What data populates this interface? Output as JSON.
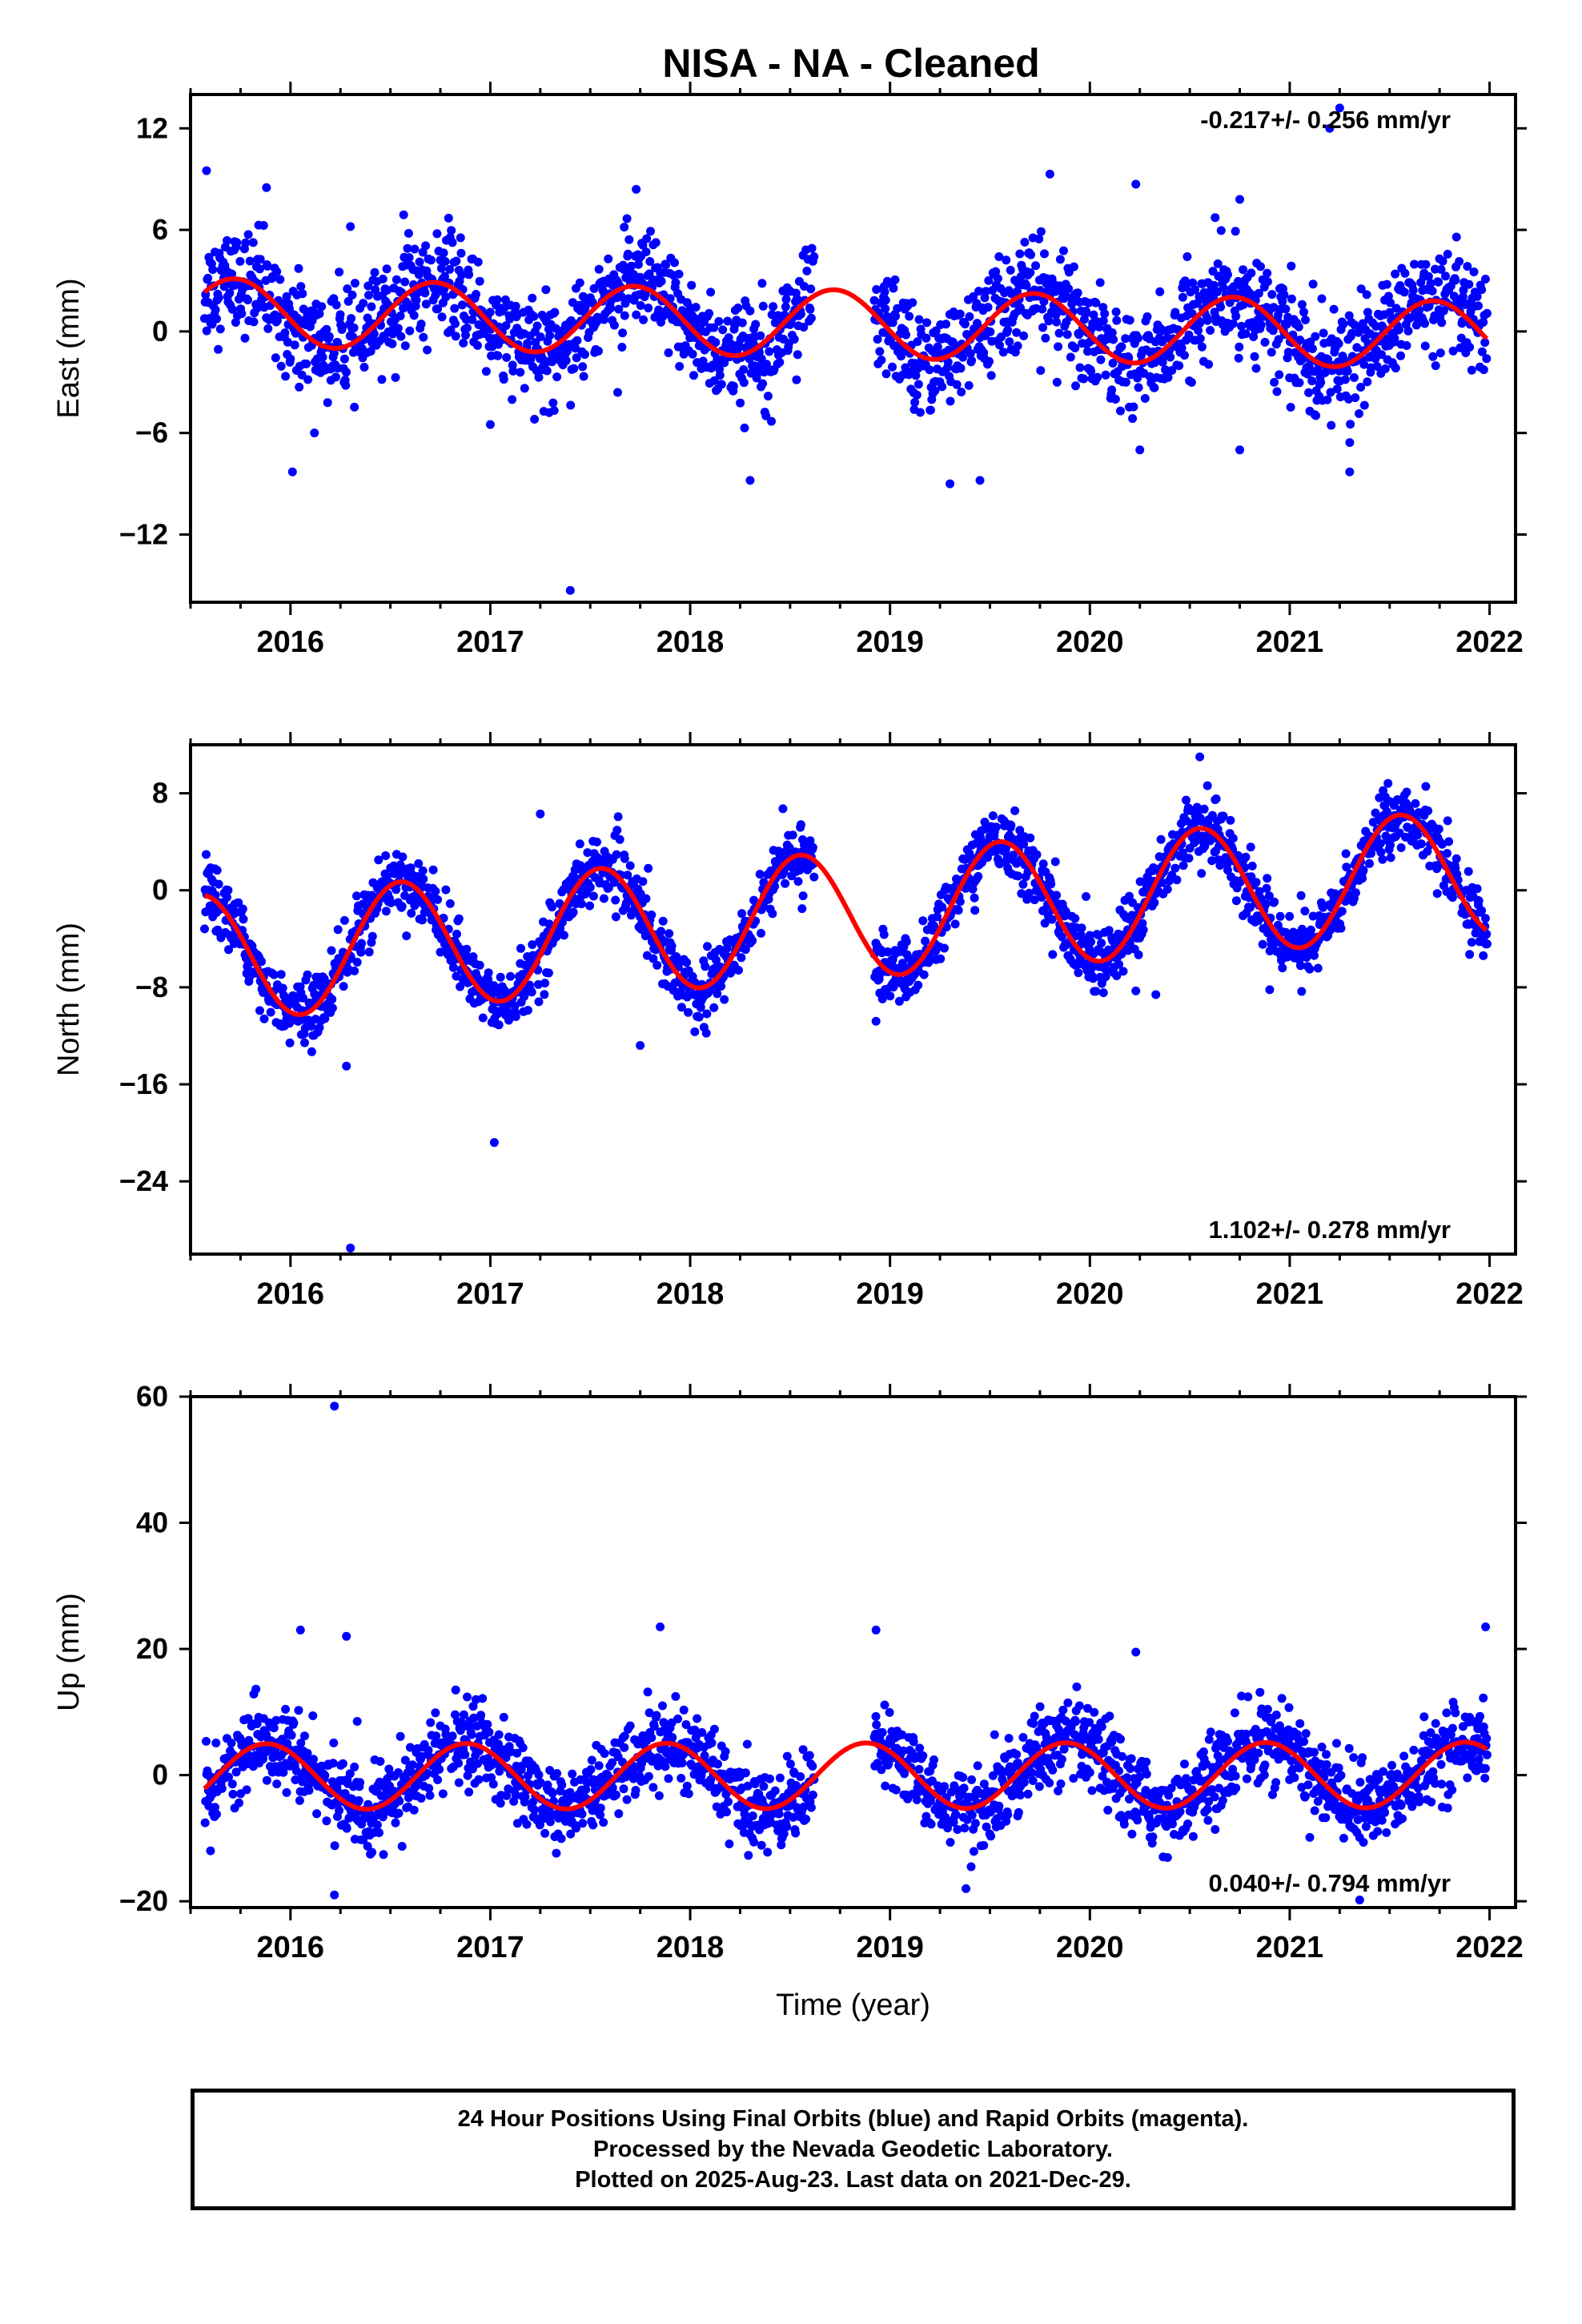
{
  "title": "NISA  - NA - Cleaned",
  "colors": {
    "points": "#0000ff",
    "model": "#ff0000",
    "axes": "#000000"
  },
  "chart_data": [
    {
      "type": "scatter",
      "component": "East",
      "ylabel": "East (mm)",
      "xlabel": "",
      "xlim": [
        2015.5,
        2022.13
      ],
      "ylim": [
        -16,
        14
      ],
      "yticks": [
        12,
        6,
        0,
        -6,
        -12
      ],
      "xticks": [
        2016,
        2017,
        2018,
        2019,
        2020,
        2021,
        2022
      ],
      "rate_label": "-0.217+/- 0.256 mm/yr",
      "rate_position": "top-right",
      "model": {
        "offset": 0.4,
        "rate": -0.217,
        "amplitude": 2.0,
        "peak_phase": 0.72
      },
      "scatter_sd": 1.5,
      "outliers": [
        {
          "x": 2015.58,
          "y": 9.5
        },
        {
          "x": 2015.88,
          "y": 8.5
        },
        {
          "x": 2016.01,
          "y": -8.3
        },
        {
          "x": 2016.12,
          "y": -6.0
        },
        {
          "x": 2016.3,
          "y": 6.2
        },
        {
          "x": 2017.0,
          "y": -5.5
        },
        {
          "x": 2017.4,
          "y": -15.3
        },
        {
          "x": 2017.73,
          "y": 8.4
        },
        {
          "x": 2018.3,
          "y": -8.8
        },
        {
          "x": 2019.3,
          "y": -9.0
        },
        {
          "x": 2019.45,
          "y": -8.8
        },
        {
          "x": 2019.8,
          "y": 9.3
        },
        {
          "x": 2020.23,
          "y": 8.7
        },
        {
          "x": 2020.25,
          "y": -7.0
        },
        {
          "x": 2020.75,
          "y": -7.0
        },
        {
          "x": 2020.75,
          "y": 7.8
        },
        {
          "x": 2021.2,
          "y": 12.0
        },
        {
          "x": 2021.25,
          "y": 13.2
        },
        {
          "x": 2021.3,
          "y": -8.3
        }
      ]
    },
    {
      "type": "scatter",
      "component": "North",
      "ylabel": "North (mm)",
      "xlabel": "",
      "xlim": [
        2015.5,
        2022.13
      ],
      "ylim": [
        -30,
        12
      ],
      "yticks": [
        8,
        0,
        -8,
        -16,
        -24
      ],
      "xticks": [
        2016,
        2017,
        2018,
        2019,
        2020,
        2021,
        2022
      ],
      "rate_label": "1.102+/- 0.278 mm/yr",
      "rate_position": "bottom-right",
      "model": {
        "offset": -1.8,
        "rate": 1.102,
        "amplitude": 5.2,
        "peak_phase": 0.55
      },
      "scatter_sd": 1.3,
      "outliers": [
        {
          "x": 2016.3,
          "y": -29.5
        },
        {
          "x": 2017.02,
          "y": -20.8
        },
        {
          "x": 2016.28,
          "y": -14.5
        },
        {
          "x": 2017.25,
          "y": 6.3
        },
        {
          "x": 2017.75,
          "y": -12.8
        },
        {
          "x": 2018.93,
          "y": -10.8
        },
        {
          "x": 2020.23,
          "y": -8.3
        },
        {
          "x": 2020.33,
          "y": -8.6
        },
        {
          "x": 2020.9,
          "y": -8.2
        },
        {
          "x": 2021.1,
          "y": -6.5
        },
        {
          "x": 2020.55,
          "y": 11.0
        }
      ]
    },
    {
      "type": "scatter",
      "component": "Up",
      "ylabel": "Up (mm)",
      "xlabel": "Time (year)",
      "xlim": [
        2015.5,
        2022.13
      ],
      "ylim": [
        -21,
        60
      ],
      "yticks": [
        60,
        40,
        20,
        0,
        -20
      ],
      "xticks": [
        2016,
        2017,
        2018,
        2019,
        2020,
        2021,
        2022
      ],
      "rate_label": "0.040+/- 0.794 mm/yr",
      "rate_position": "bottom-right",
      "model": {
        "offset": -0.1,
        "rate": 0.04,
        "amplitude": 5.2,
        "peak_phase": 0.88
      },
      "scatter_sd": 3.2,
      "outliers": [
        {
          "x": 2016.22,
          "y": 58.5
        },
        {
          "x": 2016.22,
          "y": -19.0
        },
        {
          "x": 2016.05,
          "y": 23.0
        },
        {
          "x": 2016.28,
          "y": 22.0
        },
        {
          "x": 2017.85,
          "y": 23.5
        },
        {
          "x": 2018.93,
          "y": 23.0
        },
        {
          "x": 2020.23,
          "y": 19.5
        },
        {
          "x": 2021.98,
          "y": 23.5
        },
        {
          "x": 2019.38,
          "y": -18.0
        },
        {
          "x": 2021.35,
          "y": -19.8
        },
        {
          "x": 2015.6,
          "y": -12.0
        }
      ]
    }
  ],
  "footer": {
    "line1": "24 Hour Positions Using Final Orbits (blue) and Rapid Orbits (magenta).",
    "line2": "Processed by the Nevada Geodetic Laboratory.",
    "line3": "Plotted on 2025-Aug-23. Last data on 2021-Dec-29."
  }
}
